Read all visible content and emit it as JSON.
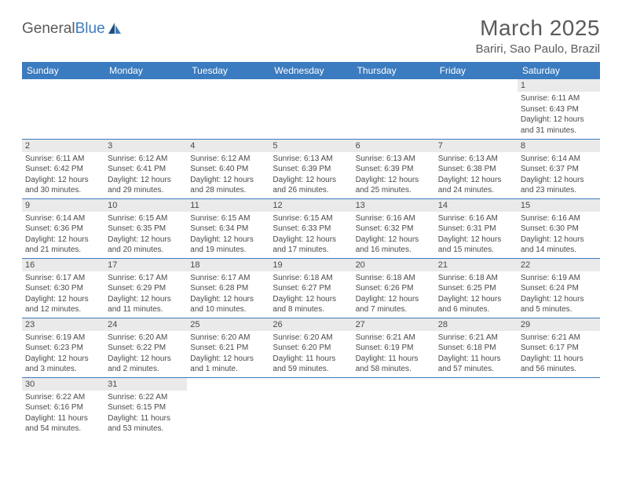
{
  "brand": {
    "name1": "General",
    "name2": "Blue"
  },
  "title": "March 2025",
  "location": "Bariri, Sao Paulo, Brazil",
  "colors": {
    "header_bg": "#3b7bbf",
    "header_text": "#ffffff",
    "row_border": "#3b7bbf",
    "daynum_bg": "#eaeaea",
    "text": "#4a4a4a",
    "title_text": "#5a5a5a"
  },
  "weekdays": [
    "Sunday",
    "Monday",
    "Tuesday",
    "Wednesday",
    "Thursday",
    "Friday",
    "Saturday"
  ],
  "weeks": [
    [
      null,
      null,
      null,
      null,
      null,
      null,
      {
        "n": "1",
        "sr": "6:11 AM",
        "ss": "6:43 PM",
        "dl": "12 hours and 31 minutes."
      }
    ],
    [
      {
        "n": "2",
        "sr": "6:11 AM",
        "ss": "6:42 PM",
        "dl": "12 hours and 30 minutes."
      },
      {
        "n": "3",
        "sr": "6:12 AM",
        "ss": "6:41 PM",
        "dl": "12 hours and 29 minutes."
      },
      {
        "n": "4",
        "sr": "6:12 AM",
        "ss": "6:40 PM",
        "dl": "12 hours and 28 minutes."
      },
      {
        "n": "5",
        "sr": "6:13 AM",
        "ss": "6:39 PM",
        "dl": "12 hours and 26 minutes."
      },
      {
        "n": "6",
        "sr": "6:13 AM",
        "ss": "6:39 PM",
        "dl": "12 hours and 25 minutes."
      },
      {
        "n": "7",
        "sr": "6:13 AM",
        "ss": "6:38 PM",
        "dl": "12 hours and 24 minutes."
      },
      {
        "n": "8",
        "sr": "6:14 AM",
        "ss": "6:37 PM",
        "dl": "12 hours and 23 minutes."
      }
    ],
    [
      {
        "n": "9",
        "sr": "6:14 AM",
        "ss": "6:36 PM",
        "dl": "12 hours and 21 minutes."
      },
      {
        "n": "10",
        "sr": "6:15 AM",
        "ss": "6:35 PM",
        "dl": "12 hours and 20 minutes."
      },
      {
        "n": "11",
        "sr": "6:15 AM",
        "ss": "6:34 PM",
        "dl": "12 hours and 19 minutes."
      },
      {
        "n": "12",
        "sr": "6:15 AM",
        "ss": "6:33 PM",
        "dl": "12 hours and 17 minutes."
      },
      {
        "n": "13",
        "sr": "6:16 AM",
        "ss": "6:32 PM",
        "dl": "12 hours and 16 minutes."
      },
      {
        "n": "14",
        "sr": "6:16 AM",
        "ss": "6:31 PM",
        "dl": "12 hours and 15 minutes."
      },
      {
        "n": "15",
        "sr": "6:16 AM",
        "ss": "6:30 PM",
        "dl": "12 hours and 14 minutes."
      }
    ],
    [
      {
        "n": "16",
        "sr": "6:17 AM",
        "ss": "6:30 PM",
        "dl": "12 hours and 12 minutes."
      },
      {
        "n": "17",
        "sr": "6:17 AM",
        "ss": "6:29 PM",
        "dl": "12 hours and 11 minutes."
      },
      {
        "n": "18",
        "sr": "6:17 AM",
        "ss": "6:28 PM",
        "dl": "12 hours and 10 minutes."
      },
      {
        "n": "19",
        "sr": "6:18 AM",
        "ss": "6:27 PM",
        "dl": "12 hours and 8 minutes."
      },
      {
        "n": "20",
        "sr": "6:18 AM",
        "ss": "6:26 PM",
        "dl": "12 hours and 7 minutes."
      },
      {
        "n": "21",
        "sr": "6:18 AM",
        "ss": "6:25 PM",
        "dl": "12 hours and 6 minutes."
      },
      {
        "n": "22",
        "sr": "6:19 AM",
        "ss": "6:24 PM",
        "dl": "12 hours and 5 minutes."
      }
    ],
    [
      {
        "n": "23",
        "sr": "6:19 AM",
        "ss": "6:23 PM",
        "dl": "12 hours and 3 minutes."
      },
      {
        "n": "24",
        "sr": "6:20 AM",
        "ss": "6:22 PM",
        "dl": "12 hours and 2 minutes."
      },
      {
        "n": "25",
        "sr": "6:20 AM",
        "ss": "6:21 PM",
        "dl": "12 hours and 1 minute."
      },
      {
        "n": "26",
        "sr": "6:20 AM",
        "ss": "6:20 PM",
        "dl": "11 hours and 59 minutes."
      },
      {
        "n": "27",
        "sr": "6:21 AM",
        "ss": "6:19 PM",
        "dl": "11 hours and 58 minutes."
      },
      {
        "n": "28",
        "sr": "6:21 AM",
        "ss": "6:18 PM",
        "dl": "11 hours and 57 minutes."
      },
      {
        "n": "29",
        "sr": "6:21 AM",
        "ss": "6:17 PM",
        "dl": "11 hours and 56 minutes."
      }
    ],
    [
      {
        "n": "30",
        "sr": "6:22 AM",
        "ss": "6:16 PM",
        "dl": "11 hours and 54 minutes."
      },
      {
        "n": "31",
        "sr": "6:22 AM",
        "ss": "6:15 PM",
        "dl": "11 hours and 53 minutes."
      },
      null,
      null,
      null,
      null,
      null
    ]
  ],
  "labels": {
    "sunrise": "Sunrise:",
    "sunset": "Sunset:",
    "daylight": "Daylight:"
  }
}
